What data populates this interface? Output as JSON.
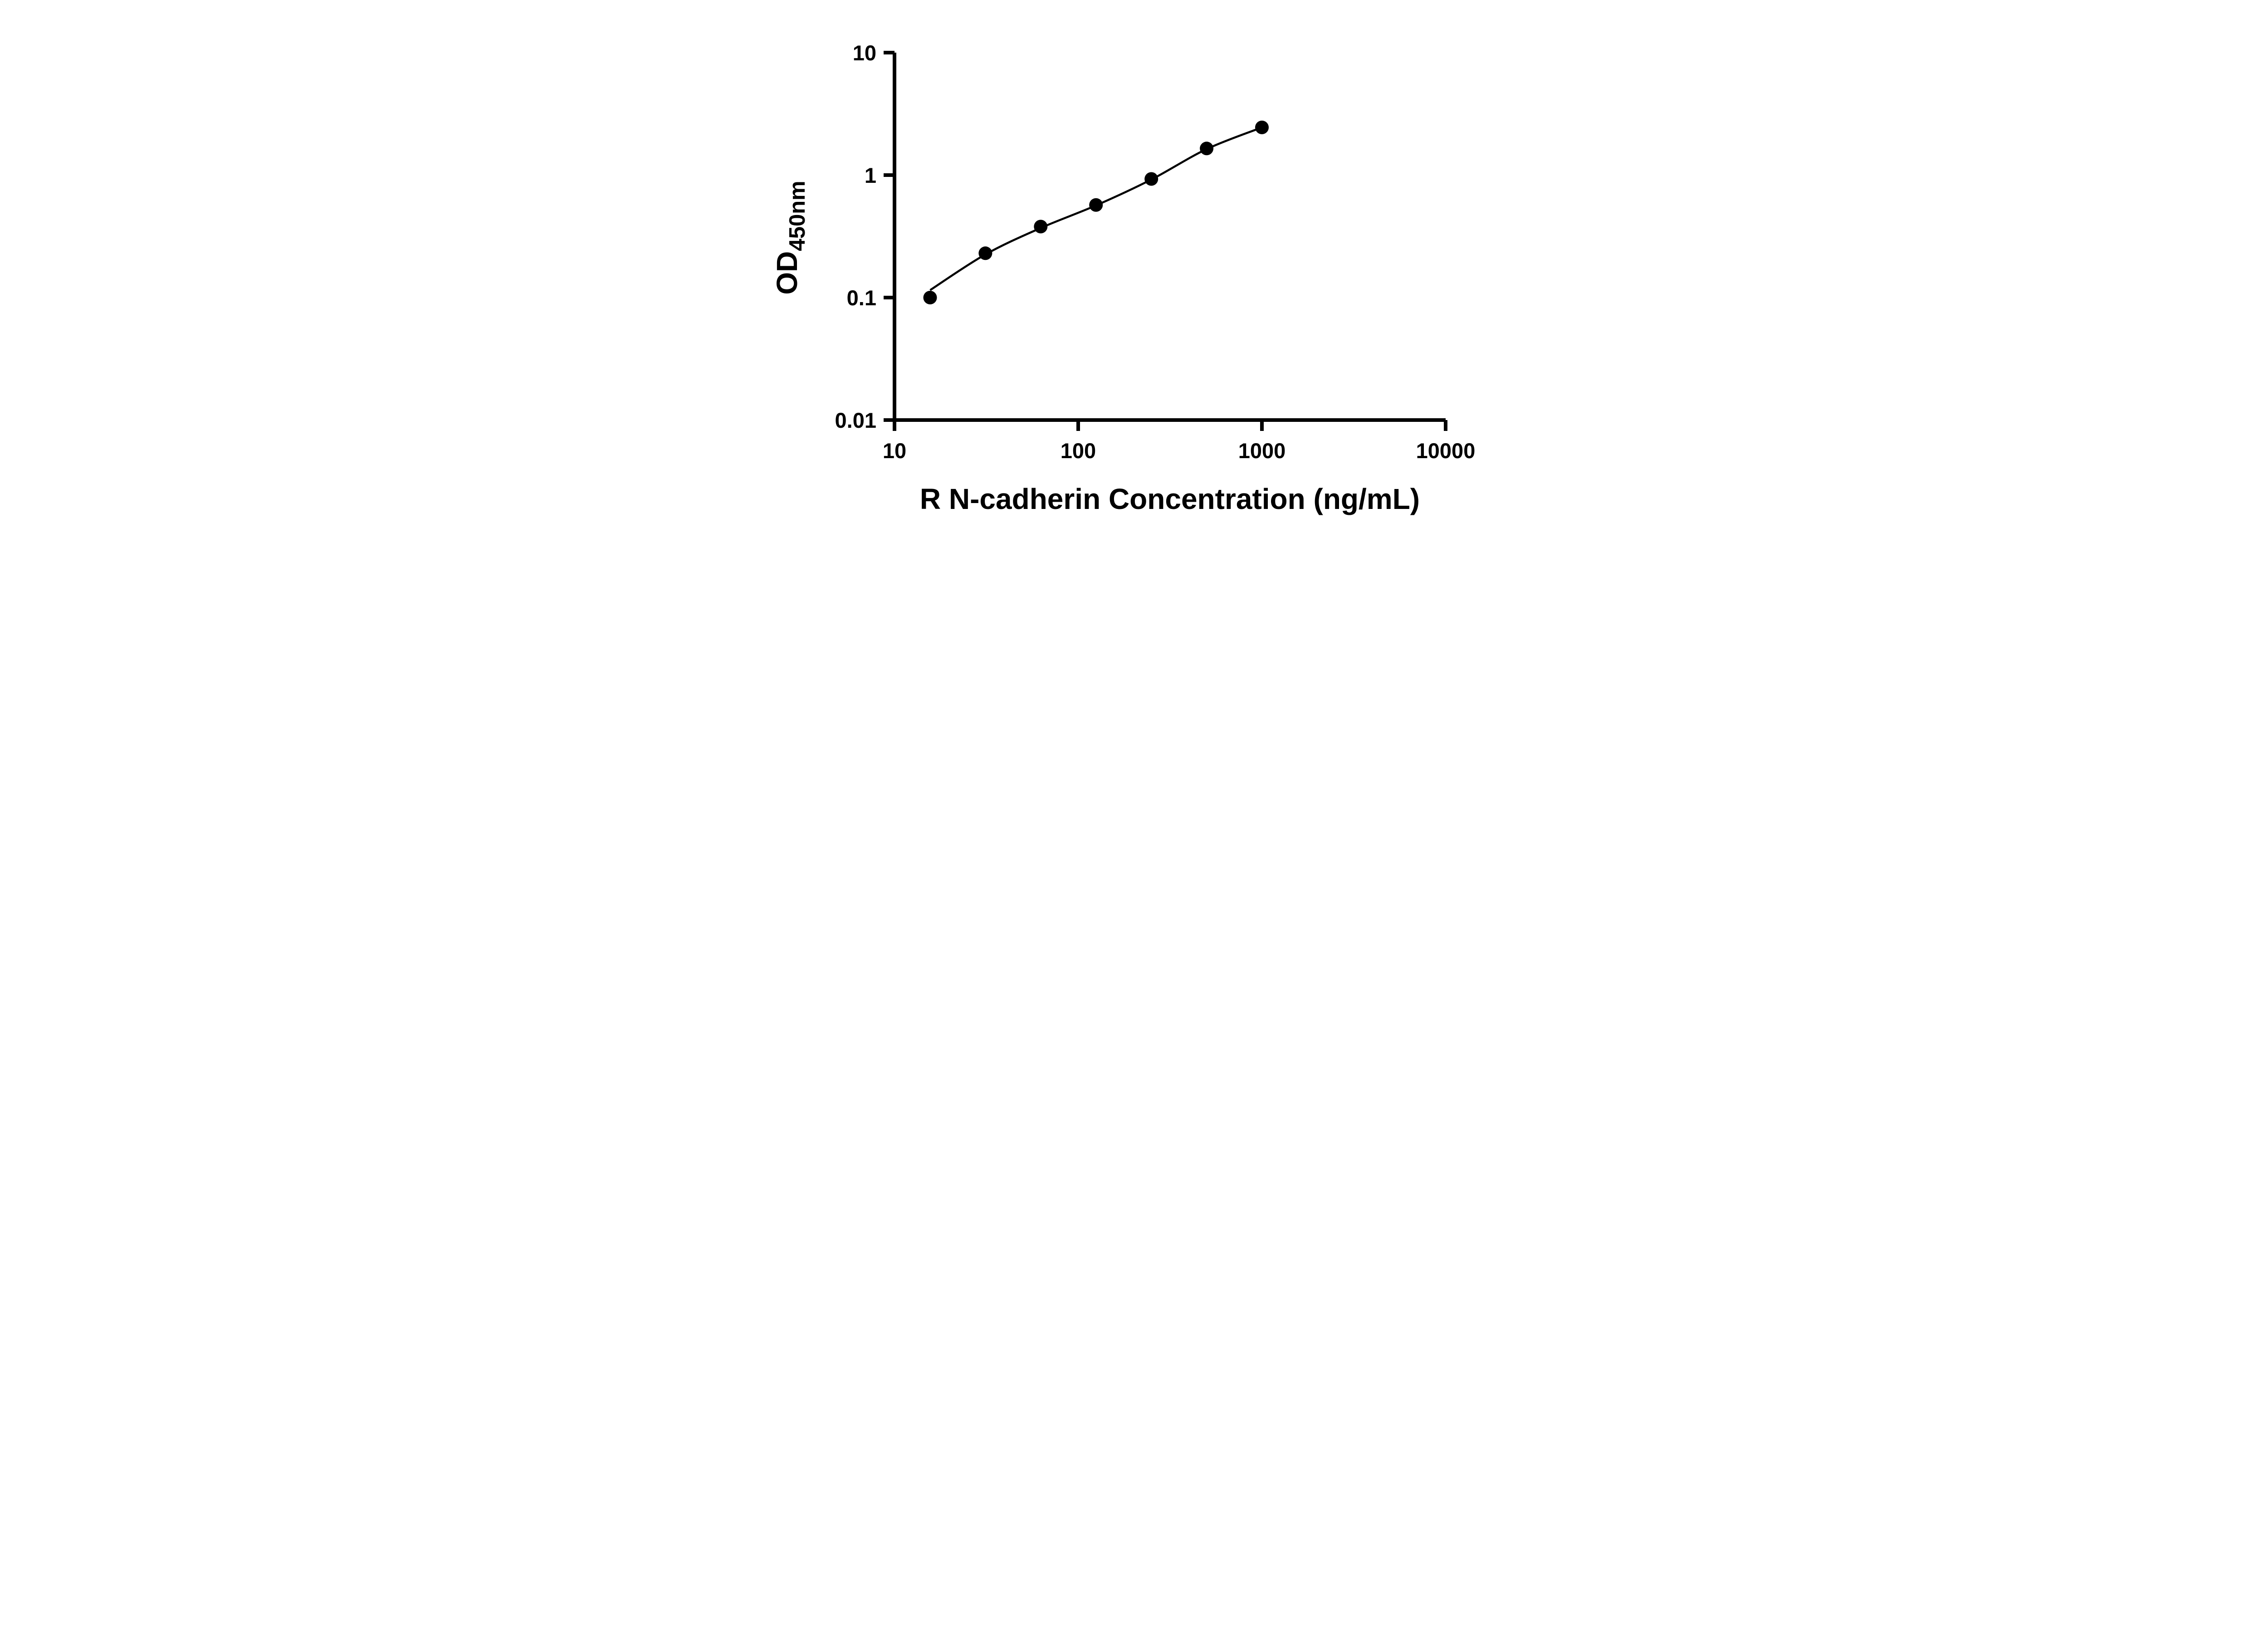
{
  "figure": {
    "background": "#ffffff",
    "ink": "#000000"
  },
  "chart_data": {
    "type": "scatter",
    "title": "",
    "xlabel": "R N-cadherin Concentration (ng/mL)",
    "ylabel_main": "OD",
    "ylabel_sub": "450nm",
    "x_scale": "log10",
    "y_scale": "log10",
    "xlim": [
      10,
      10000
    ],
    "ylim": [
      0.01,
      10
    ],
    "grid": false,
    "legend": false,
    "x_ticks": {
      "values": [
        10,
        100,
        1000,
        10000
      ],
      "labels": [
        "10",
        "100",
        "1000",
        "10000"
      ]
    },
    "y_ticks": {
      "values": [
        0.01,
        0.1,
        1,
        10
      ],
      "labels": [
        "0.01",
        "0.1",
        "1",
        "10"
      ]
    },
    "series": [
      {
        "name": "standard-curve-points",
        "marker": "circle",
        "color": "#000000",
        "x": [
          15.625,
          31.25,
          62.5,
          125,
          250,
          500,
          1000
        ],
        "y": [
          0.1,
          0.23,
          0.38,
          0.57,
          0.93,
          1.65,
          2.45
        ]
      }
    ],
    "trendline": {
      "name": "fitted-curve",
      "color": "#000000",
      "x": [
        15.625,
        31.25,
        62.5,
        125,
        250,
        500,
        1000
      ],
      "y": [
        0.115,
        0.225,
        0.37,
        0.565,
        0.92,
        1.63,
        2.45
      ]
    }
  }
}
